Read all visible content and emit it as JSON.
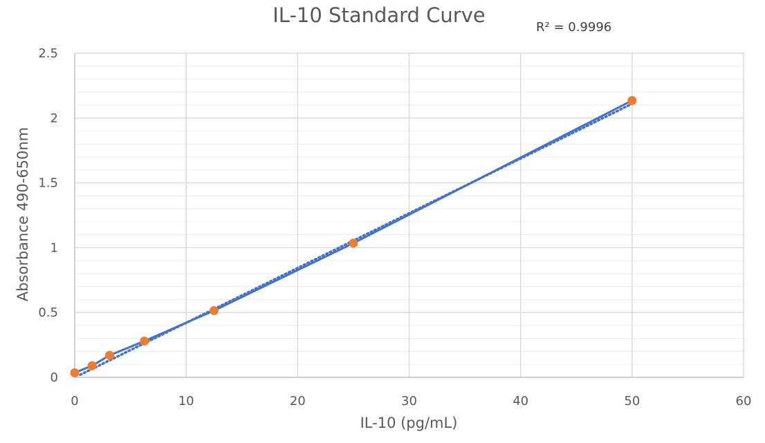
{
  "chart_data": {
    "type": "scatter",
    "title": "IL-10 Standard Curve",
    "xlabel": "IL-10 (pg/mL)",
    "ylabel": "Absorbance 490-650nm",
    "xlim": [
      0,
      60
    ],
    "ylim": [
      0,
      2.5
    ],
    "x_ticks": [
      0,
      10,
      20,
      30,
      40,
      50,
      60
    ],
    "y_ticks": [
      0,
      0.5,
      1,
      1.5,
      2,
      2.5
    ],
    "y_tick_labels": [
      "0",
      "0.5",
      "1",
      "1.5",
      "2",
      "2.5"
    ],
    "x_tick_labels": [
      "0",
      "10",
      "20",
      "30",
      "40",
      "50",
      "60"
    ],
    "grid": true,
    "legend": "none",
    "r_squared_label": "R² = 0.9996",
    "series": [
      {
        "kind": "points",
        "color": "#ED7D31",
        "x": [
          0,
          1.56,
          3.13,
          6.25,
          12.5,
          25,
          50
        ],
        "y": [
          0.035,
          0.09,
          0.17,
          0.28,
          0.515,
          1.035,
          2.135
        ]
      },
      {
        "kind": "connecting-line",
        "color": "#4472C4",
        "x": [
          0,
          1.56,
          3.13,
          6.25,
          12.5,
          25,
          50
        ],
        "y": [
          0.035,
          0.09,
          0.17,
          0.28,
          0.515,
          1.035,
          2.135
        ]
      },
      {
        "kind": "linear-trendline",
        "style": "dotted",
        "color": "#4472C4",
        "x": [
          0.5,
          50
        ],
        "y": [
          0.02,
          2.11
        ]
      }
    ]
  }
}
